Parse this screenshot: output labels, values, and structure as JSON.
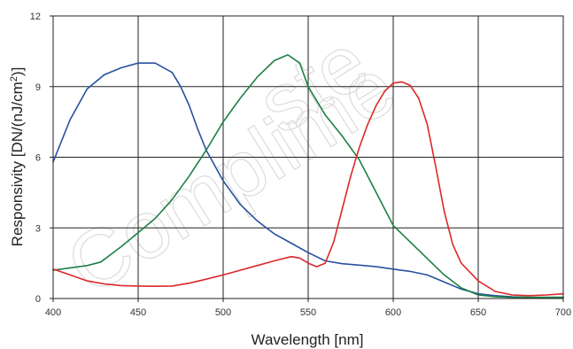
{
  "chart_data": {
    "type": "line",
    "title": "",
    "xlabel": "Wavelength [nm]",
    "ylabel_main": "Responsivity [DN/(nJ/cm",
    "ylabel_sup": "2",
    "ylabel_end": ")]",
    "xlim": [
      400,
      700
    ],
    "ylim": [
      0,
      12
    ],
    "xticks": [
      400,
      450,
      500,
      550,
      600,
      650,
      700
    ],
    "yticks": [
      0,
      3,
      6,
      9,
      12
    ],
    "grid": true,
    "legend": "none",
    "series": [
      {
        "color": "#2850a0",
        "points": [
          [
            400,
            5.8
          ],
          [
            410,
            7.6
          ],
          [
            420,
            8.9
          ],
          [
            430,
            9.5
          ],
          [
            440,
            9.8
          ],
          [
            450,
            10.0
          ],
          [
            460,
            10.0
          ],
          [
            470,
            9.6
          ],
          [
            475,
            9.0
          ],
          [
            480,
            8.2
          ],
          [
            485,
            7.2
          ],
          [
            490,
            6.3
          ],
          [
            500,
            5.0
          ],
          [
            510,
            4.0
          ],
          [
            520,
            3.3
          ],
          [
            530,
            2.75
          ],
          [
            540,
            2.35
          ],
          [
            550,
            1.95
          ],
          [
            560,
            1.6
          ],
          [
            570,
            1.48
          ],
          [
            580,
            1.42
          ],
          [
            590,
            1.35
          ],
          [
            600,
            1.25
          ],
          [
            610,
            1.15
          ],
          [
            620,
            1.0
          ],
          [
            630,
            0.7
          ],
          [
            640,
            0.4
          ],
          [
            650,
            0.2
          ],
          [
            660,
            0.12
          ],
          [
            670,
            0.07
          ],
          [
            680,
            0.05
          ],
          [
            690,
            0.05
          ],
          [
            700,
            0.05
          ]
        ]
      },
      {
        "color": "#1e8044",
        "points": [
          [
            400,
            1.2
          ],
          [
            410,
            1.3
          ],
          [
            420,
            1.4
          ],
          [
            428,
            1.55
          ],
          [
            440,
            2.2
          ],
          [
            450,
            2.8
          ],
          [
            460,
            3.4
          ],
          [
            470,
            4.2
          ],
          [
            480,
            5.2
          ],
          [
            490,
            6.3
          ],
          [
            500,
            7.5
          ],
          [
            510,
            8.5
          ],
          [
            520,
            9.4
          ],
          [
            530,
            10.1
          ],
          [
            538,
            10.35
          ],
          [
            545,
            10.0
          ],
          [
            550,
            9.0
          ],
          [
            560,
            7.8
          ],
          [
            570,
            6.9
          ],
          [
            580,
            5.9
          ],
          [
            590,
            4.5
          ],
          [
            600,
            3.1
          ],
          [
            610,
            2.4
          ],
          [
            620,
            1.7
          ],
          [
            630,
            1.0
          ],
          [
            640,
            0.45
          ],
          [
            650,
            0.15
          ],
          [
            660,
            0.08
          ],
          [
            670,
            0.05
          ],
          [
            700,
            0.05
          ]
        ]
      },
      {
        "color": "#dc2828",
        "points": [
          [
            400,
            1.25
          ],
          [
            410,
            1.0
          ],
          [
            420,
            0.75
          ],
          [
            430,
            0.62
          ],
          [
            440,
            0.55
          ],
          [
            450,
            0.53
          ],
          [
            460,
            0.52
          ],
          [
            470,
            0.53
          ],
          [
            480,
            0.65
          ],
          [
            490,
            0.82
          ],
          [
            500,
            1.0
          ],
          [
            510,
            1.2
          ],
          [
            520,
            1.4
          ],
          [
            530,
            1.6
          ],
          [
            540,
            1.78
          ],
          [
            545,
            1.72
          ],
          [
            550,
            1.5
          ],
          [
            555,
            1.35
          ],
          [
            560,
            1.5
          ],
          [
            565,
            2.4
          ],
          [
            570,
            3.8
          ],
          [
            575,
            5.2
          ],
          [
            580,
            6.4
          ],
          [
            585,
            7.4
          ],
          [
            590,
            8.2
          ],
          [
            595,
            8.8
          ],
          [
            600,
            9.15
          ],
          [
            605,
            9.2
          ],
          [
            610,
            9.05
          ],
          [
            615,
            8.5
          ],
          [
            620,
            7.4
          ],
          [
            625,
            5.6
          ],
          [
            630,
            3.7
          ],
          [
            635,
            2.3
          ],
          [
            640,
            1.5
          ],
          [
            650,
            0.75
          ],
          [
            660,
            0.3
          ],
          [
            670,
            0.15
          ],
          [
            680,
            0.12
          ],
          [
            690,
            0.15
          ],
          [
            700,
            0.2
          ]
        ]
      }
    ]
  }
}
